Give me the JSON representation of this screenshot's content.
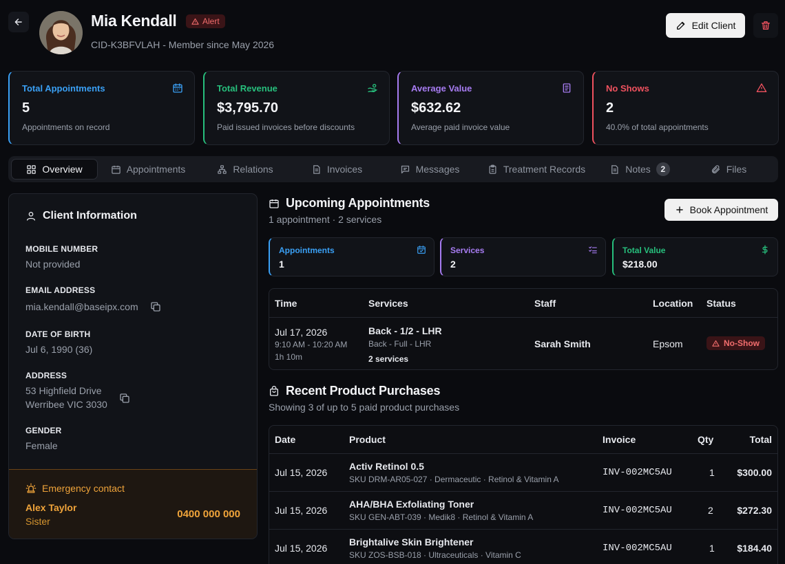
{
  "header": {
    "client_name": "Mia Kendall",
    "alert_label": "Alert",
    "client_id_line": "CID-K3BFVLAH - Member since May 2026",
    "edit_label": "Edit Client"
  },
  "stats": [
    {
      "title": "Total Appointments",
      "value": "5",
      "sub": "Appointments on record",
      "color": "#3aa0f5",
      "icon": "calendar-icon"
    },
    {
      "title": "Total Revenue",
      "value": "$3,795.70",
      "sub": "Paid issued invoices before discounts",
      "color": "#27c07d",
      "icon": "hand-coins-icon"
    },
    {
      "title": "Average Value",
      "value": "$632.62",
      "sub": "Average paid invoice value",
      "color": "#a77cf2",
      "icon": "receipt-icon"
    },
    {
      "title": "No Shows",
      "value": "2",
      "sub": "40.0% of total appointments",
      "color": "#f0525f",
      "icon": "warning-triangle-icon"
    }
  ],
  "tabs": [
    {
      "label": "Overview",
      "icon": "grid-icon",
      "active": true
    },
    {
      "label": "Appointments",
      "icon": "calendar-icon"
    },
    {
      "label": "Relations",
      "icon": "network-icon"
    },
    {
      "label": "Invoices",
      "icon": "document-icon"
    },
    {
      "label": "Messages",
      "icon": "message-icon"
    },
    {
      "label": "Treatment Records",
      "icon": "clipboard-icon"
    },
    {
      "label": "Notes",
      "icon": "note-icon",
      "count": "2"
    },
    {
      "label": "Files",
      "icon": "paperclip-icon"
    }
  ],
  "client_info": {
    "title": "Client Information",
    "mobile_label": "MOBILE NUMBER",
    "mobile_value": "Not provided",
    "email_label": "EMAIL ADDRESS",
    "email_value": "mia.kendall@baseipx.com",
    "dob_label": "DATE OF BIRTH",
    "dob_value": "Jul 6, 1990 (36)",
    "address_label": "ADDRESS",
    "address_line1": "53 Highfield Drive",
    "address_line2": "Werribee VIC 3030",
    "gender_label": "GENDER",
    "gender_value": "Female",
    "emergency": {
      "title": "Emergency contact",
      "name": "Alex Taylor",
      "relation": "Sister",
      "phone": "0400 000 000"
    }
  },
  "upcoming": {
    "title": "Upcoming Appointments",
    "subtitle": "1 appointment · 2 services",
    "book_label": "Book Appointment",
    "mini": [
      {
        "title": "Appointments",
        "value": "1",
        "color": "#3aa0f5",
        "icon": "calendar-check-icon"
      },
      {
        "title": "Services",
        "value": "2",
        "color": "#a77cf2",
        "icon": "list-check-icon"
      },
      {
        "title": "Total Value",
        "value": "$218.00",
        "color": "#27c07d",
        "icon": "dollar-icon"
      }
    ],
    "columns": [
      "Time",
      "Services",
      "Staff",
      "Location",
      "Status"
    ],
    "row": {
      "date": "Jul 17, 2026",
      "time": "9:10 AM - 10:20 AM",
      "duration": "1h 10m",
      "service_main": "Back - 1/2 - LHR",
      "service_sub": "Back - Full - LHR",
      "service_count": "2 services",
      "staff": "Sarah Smith",
      "location": "Epsom",
      "status": "No-Show"
    }
  },
  "purchases": {
    "title": "Recent Product Purchases",
    "subtitle": "Showing 3 of up to 5 paid product purchases",
    "columns": [
      "Date",
      "Product",
      "Invoice",
      "Qty",
      "Total"
    ],
    "rows": [
      {
        "date": "Jul 15, 2026",
        "product": "Activ Retinol 0.5",
        "meta": "SKU DRM-AR05-027 · Dermaceutic · Retinol & Vitamin A",
        "invoice": "INV-002MC5AU",
        "qty": "1",
        "total": "$300.00"
      },
      {
        "date": "Jul 15, 2026",
        "product": "AHA/BHA Exfoliating Toner",
        "meta": "SKU GEN-ABT-039 · Medik8 · Retinol & Vitamin A",
        "invoice": "INV-002MC5AU",
        "qty": "2",
        "total": "$272.30"
      },
      {
        "date": "Jul 15, 2026",
        "product": "Brightalive Skin Brightener",
        "meta": "SKU ZOS-BSB-018 · Ultraceuticals · Vitamin C",
        "invoice": "INV-002MC5AU",
        "qty": "1",
        "total": "$184.40"
      }
    ]
  }
}
